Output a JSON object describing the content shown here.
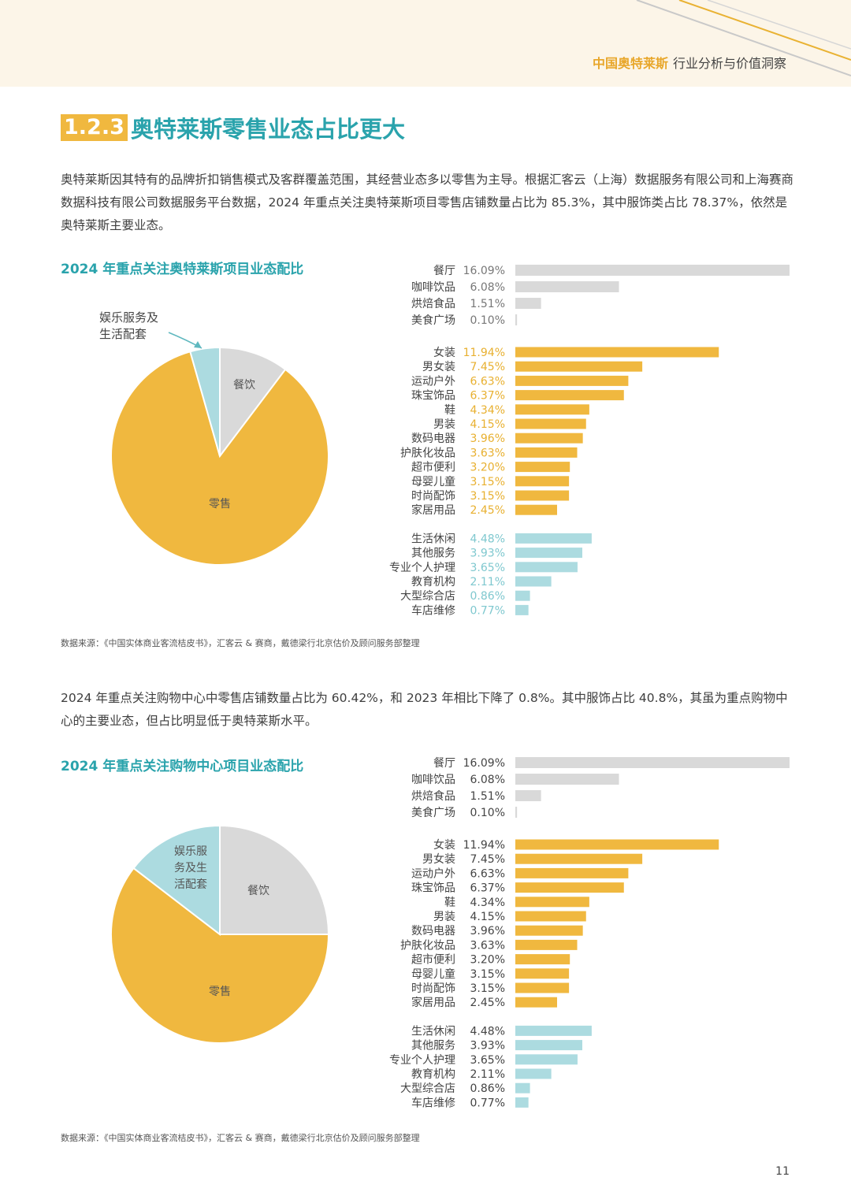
{
  "header": {
    "brand": "中国奥特莱斯",
    "subtitle": "行业分析与价值洞察"
  },
  "section": {
    "number": "1.2.3",
    "title": "奥特莱斯零售业态占比更大"
  },
  "paragraph1": "奥特莱斯因其特有的品牌折扣销售模式及客群覆盖范围，其经营业态多以零售为主导。根据汇客云（上海）数据服务有限公司和上海赛商数据科技有限公司数据服务平台数据，2024 年重点关注奥特莱斯项目零售店铺数量占比为 85.3%，其中服饰类占比 78.37%，依然是奥特莱斯主要业态。",
  "paragraph2": "2024 年重点关注购物中心中零售店铺数量占比为 60.42%，和 2023 年相比下降了 0.8%。其中服饰占比 40.8%，其虽为重点购物中心的主要业态，但占比明显低于奥特莱斯水平。",
  "source_note": "数据来源：《中国实体商业客流桔皮书》，汇客云 & 赛商，戴德梁行北京估价及顾问服务部整理",
  "page_number": "11",
  "colors": {
    "gray": "#d9d9d9",
    "orange": "#f0b83f",
    "teal": "#acdbe0",
    "title": "#2aa3ac",
    "orange_text": "#e8b030",
    "teal_text": "#7fc8cf",
    "dark_text": "#444444"
  },
  "chart_data": [
    {
      "type": "pie",
      "title": "2024 年重点关注奥特莱斯项目业态配比",
      "slices": [
        {
          "label": "餐饮",
          "value": 10.3,
          "color": "#d9d9d9"
        },
        {
          "label": "零售",
          "value": 85.3,
          "color": "#f0b83f"
        },
        {
          "label": "娱乐服务及生活配套",
          "value": 4.4,
          "color": "#acdbe0"
        }
      ],
      "annotation": "娱乐服务及\n生活配套",
      "bars": {
        "type": "bar",
        "orientation": "horizontal",
        "groups": [
          {
            "name": "餐饮",
            "color": "#d9d9d9",
            "value_color": "#777777",
            "items": [
              [
                "餐厅",
                16.09,
                "16.09%"
              ],
              [
                "咖啡饮品",
                6.08,
                "6.08%"
              ],
              [
                "烘焙食品",
                1.51,
                "1.51%"
              ],
              [
                "美食广场",
                0.1,
                "0.10%"
              ]
            ]
          },
          {
            "name": "零售",
            "color": "#f0b83f",
            "value_color": "#e8b030",
            "items": [
              [
                "女装",
                11.94,
                "11.94%"
              ],
              [
                "男女装",
                7.45,
                "7.45%"
              ],
              [
                "运动户外",
                6.63,
                "6.63%"
              ],
              [
                "珠宝饰品",
                6.37,
                "6.37%"
              ],
              [
                "鞋",
                4.34,
                "4.34%"
              ],
              [
                "男装",
                4.15,
                "4.15%"
              ],
              [
                "数码电器",
                3.96,
                "3.96%"
              ],
              [
                "护肤化妆品",
                3.63,
                "3.63%"
              ],
              [
                "超市便利",
                3.2,
                "3.20%"
              ],
              [
                "母婴儿童",
                3.15,
                "3.15%"
              ],
              [
                "时尚配饰",
                3.15,
                "3.15%"
              ],
              [
                "家居用品",
                2.45,
                "2.45%"
              ]
            ]
          },
          {
            "name": "娱乐服务及生活配套",
            "color": "#acdbe0",
            "value_color": "#7fc8cf",
            "items": [
              [
                "生活休闲",
                4.48,
                "4.48%"
              ],
              [
                "其他服务",
                3.93,
                "3.93%"
              ],
              [
                "专业个人护理",
                3.65,
                "3.65%"
              ],
              [
                "教育机构",
                2.11,
                "2.11%"
              ],
              [
                "大型综合店",
                0.86,
                "0.86%"
              ],
              [
                "车店维修",
                0.77,
                "0.77%"
              ]
            ]
          }
        ]
      }
    },
    {
      "type": "pie",
      "title": "2024 年重点关注购物中心项目业态配比",
      "slices": [
        {
          "label": "餐饮",
          "value": 25.0,
          "color": "#d9d9d9"
        },
        {
          "label": "零售",
          "value": 60.42,
          "color": "#f0b83f"
        },
        {
          "label": "娱乐服\n务及生\n活配套",
          "value": 14.58,
          "color": "#acdbe0"
        }
      ],
      "bars": {
        "type": "bar",
        "orientation": "horizontal",
        "groups": [
          {
            "name": "餐饮",
            "color": "#d9d9d9",
            "value_color": "#444444",
            "items": [
              [
                "餐厅",
                16.09,
                "16.09%"
              ],
              [
                "咖啡饮品",
                6.08,
                "6.08%"
              ],
              [
                "烘焙食品",
                1.51,
                "1.51%"
              ],
              [
                "美食广场",
                0.1,
                "0.10%"
              ]
            ]
          },
          {
            "name": "零售",
            "color": "#f0b83f",
            "value_color": "#444444",
            "items": [
              [
                "女装",
                11.94,
                "11.94%"
              ],
              [
                "男女装",
                7.45,
                "7.45%"
              ],
              [
                "运动户外",
                6.63,
                "6.63%"
              ],
              [
                "珠宝饰品",
                6.37,
                "6.37%"
              ],
              [
                "鞋",
                4.34,
                "4.34%"
              ],
              [
                "男装",
                4.15,
                "4.15%"
              ],
              [
                "数码电器",
                3.96,
                "3.96%"
              ],
              [
                "护肤化妆品",
                3.63,
                "3.63%"
              ],
              [
                "超市便利",
                3.2,
                "3.20%"
              ],
              [
                "母婴儿童",
                3.15,
                "3.15%"
              ],
              [
                "时尚配饰",
                3.15,
                "3.15%"
              ],
              [
                "家居用品",
                2.45,
                "2.45%"
              ]
            ]
          },
          {
            "name": "娱乐服务及生活配套",
            "color": "#acdbe0",
            "value_color": "#444444",
            "items": [
              [
                "生活休闲",
                4.48,
                "4.48%"
              ],
              [
                "其他服务",
                3.93,
                "3.93%"
              ],
              [
                "专业个人护理",
                3.65,
                "3.65%"
              ],
              [
                "教育机构",
                2.11,
                "2.11%"
              ],
              [
                "大型综合店",
                0.86,
                "0.86%"
              ],
              [
                "车店维修",
                0.77,
                "0.77%"
              ]
            ]
          }
        ]
      }
    }
  ]
}
